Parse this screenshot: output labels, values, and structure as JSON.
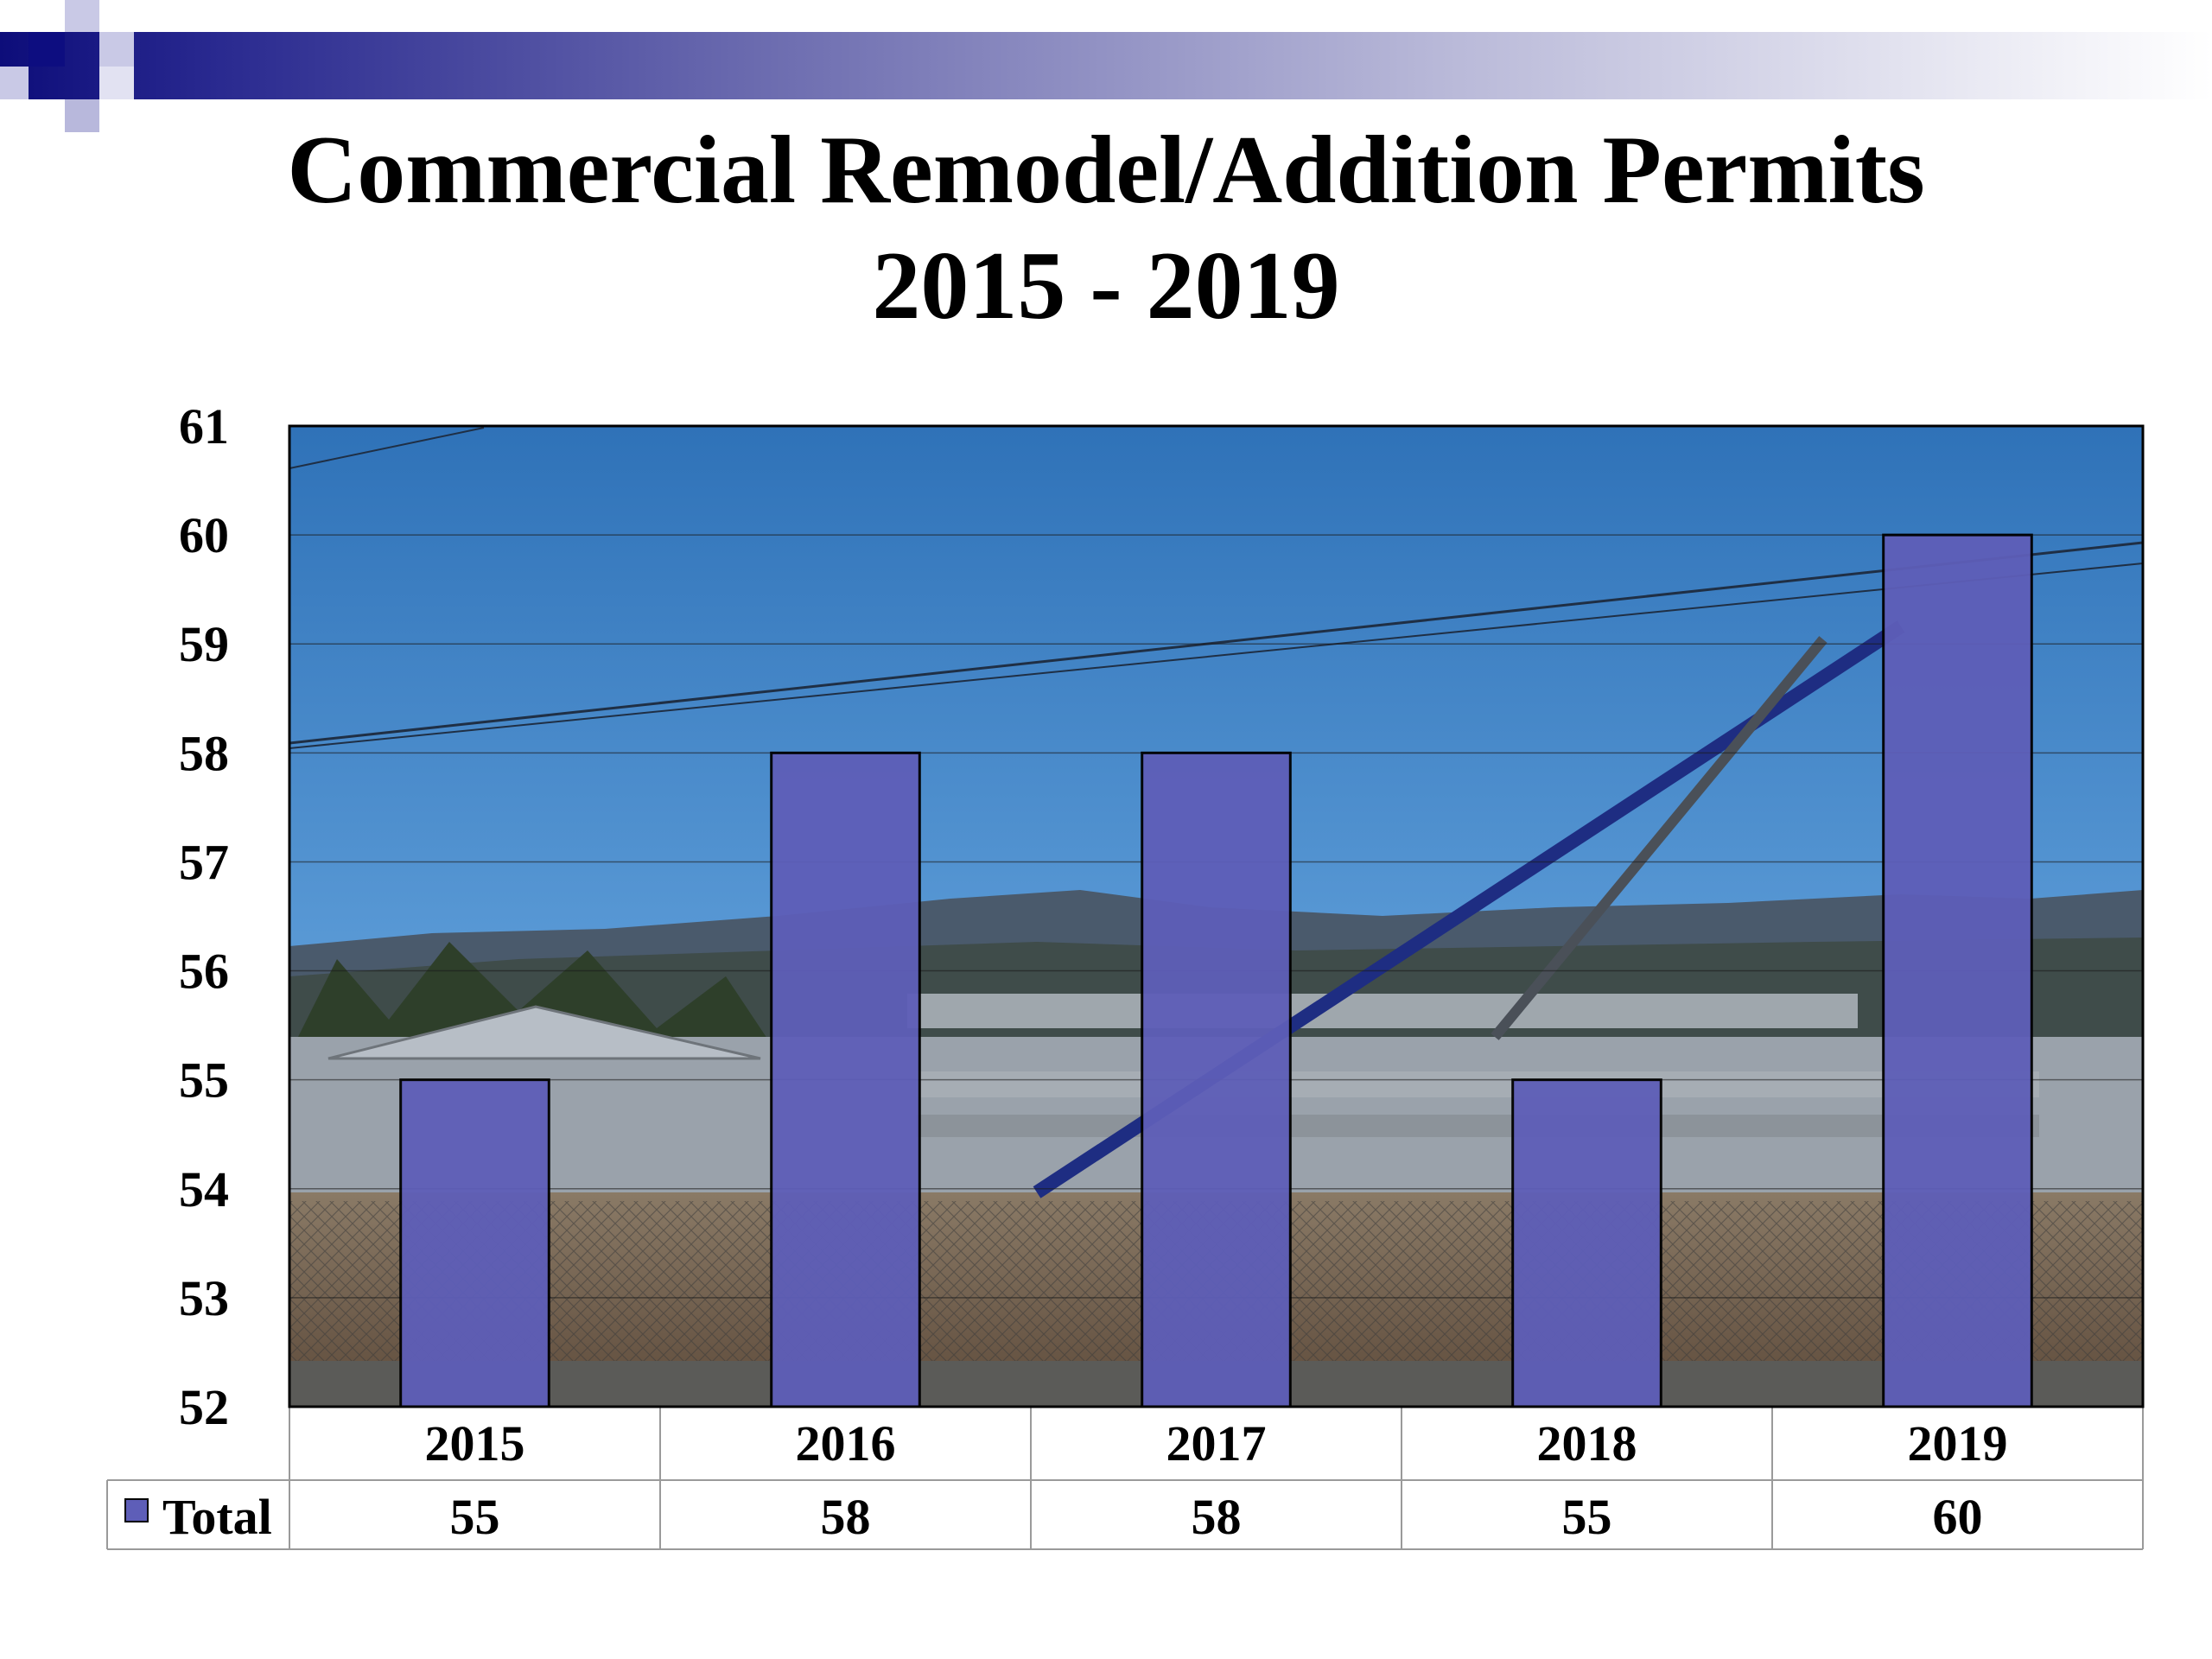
{
  "slide": {
    "title_line1": "Commercial Remodel/Addition Permits",
    "title_line2": "2015 - 2019"
  },
  "colors": {
    "bar_fill": "#5e5eb8",
    "ribbon_dark": "#0d0d80",
    "sky": "#3f83c7"
  },
  "chart_data": {
    "type": "bar",
    "categories": [
      "2015",
      "2016",
      "2017",
      "2018",
      "2019"
    ],
    "series": [
      {
        "name": "Total",
        "values": [
          55,
          58,
          58,
          55,
          60
        ]
      }
    ],
    "ylim": [
      52,
      61
    ],
    "yticks": [
      "52",
      "53",
      "54",
      "55",
      "56",
      "57",
      "58",
      "59",
      "60",
      "61"
    ],
    "grid": true,
    "data_table": true,
    "background": "construction-site-photo"
  }
}
